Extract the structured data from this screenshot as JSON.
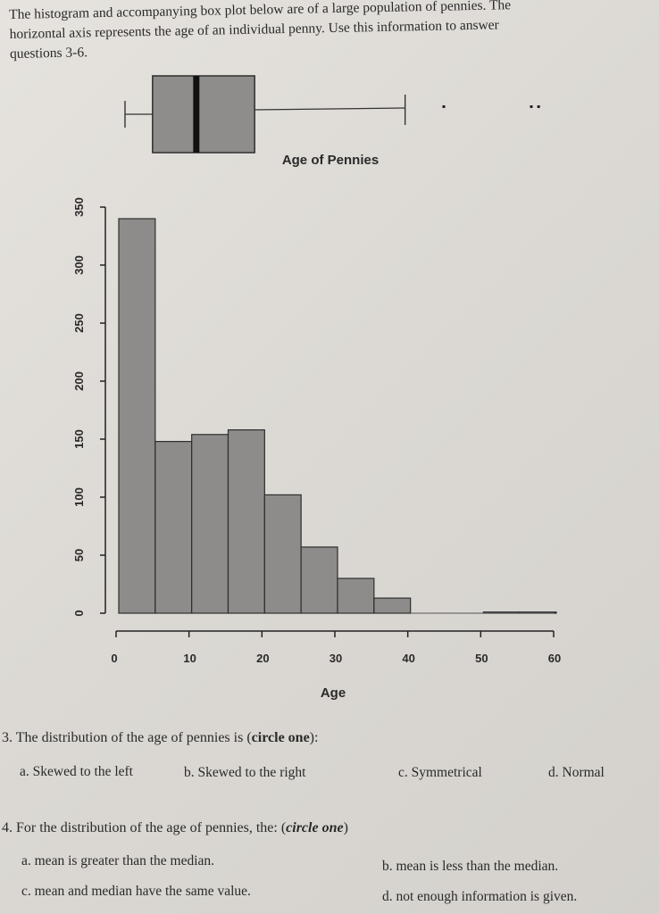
{
  "intro": {
    "line1": "The histogram and accompanying box plot below are of a large population of pennies.  The",
    "line2": "horizontal axis represents the age of an individual penny.  Use this information to answer",
    "line3": "questions 3-6."
  },
  "chart_data": [
    {
      "type": "box",
      "title": "Age of Pennies",
      "whisker_low": 0,
      "q1": 5,
      "median": 11,
      "q3": 19,
      "whisker_high": 40,
      "outliers": [
        45,
        57,
        58
      ]
    },
    {
      "type": "bar",
      "xlabel": "Age",
      "ylabel": "",
      "bins": [
        [
          0,
          5
        ],
        [
          5,
          10
        ],
        [
          10,
          15
        ],
        [
          15,
          20
        ],
        [
          20,
          25
        ],
        [
          25,
          30
        ],
        [
          30,
          35
        ],
        [
          35,
          40
        ],
        [
          40,
          45
        ],
        [
          45,
          50
        ],
        [
          50,
          55
        ],
        [
          55,
          60
        ]
      ],
      "values": [
        340,
        148,
        154,
        158,
        102,
        57,
        30,
        13,
        0,
        0,
        1,
        1
      ],
      "x_ticks": [
        0,
        10,
        20,
        30,
        40,
        50,
        60
      ],
      "y_ticks": [
        0,
        50,
        100,
        150,
        200,
        250,
        300,
        350
      ],
      "xlim": [
        0,
        60
      ],
      "ylim": [
        0,
        350
      ],
      "grid": false
    }
  ],
  "q3": {
    "number": "3.",
    "text": "The distribution of the age of pennies is (",
    "bold": "circle one",
    "tail": "):",
    "options": [
      "a. Skewed to the left",
      "b. Skewed to the right",
      "c. Symmetrical",
      "d. Normal"
    ]
  },
  "q4": {
    "number": "4.",
    "text": "For the distribution of the age of pennies, the: (",
    "bold": "circle one",
    "tail": ")",
    "options": [
      "a. mean is greater than the median.",
      "b. mean is less than the median.",
      "c. mean and median have the same value.",
      "d. not enough information is given."
    ]
  }
}
